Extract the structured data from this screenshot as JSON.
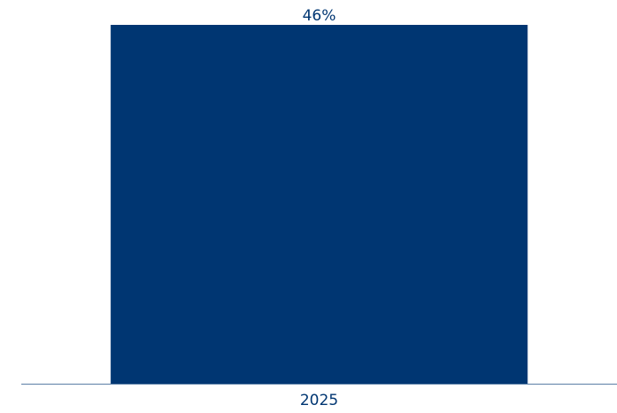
{
  "chart_data": {
    "type": "bar",
    "categories": [
      "2025"
    ],
    "values": [
      46
    ],
    "data_labels": [
      "46%"
    ],
    "ylim": [
      0,
      46
    ],
    "grid": false,
    "legend": "none",
    "colors": {
      "bar": "#003672",
      "axis": "#5b7fa6",
      "label": "#003672"
    }
  }
}
